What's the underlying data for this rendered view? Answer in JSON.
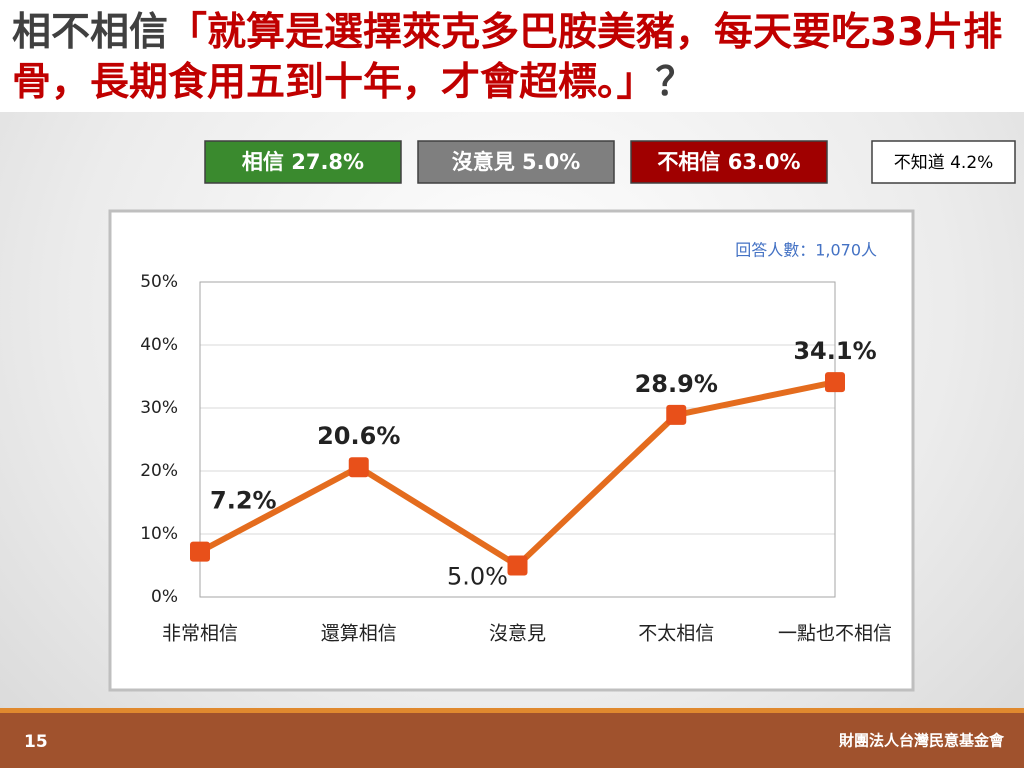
{
  "header": {
    "title": [
      "相不相信",
      "「就算是選擇萊克多巴胺美豬，每天要吃33片排骨，長期食用五到十年，才會超標。」",
      "？"
    ]
  },
  "summary": [
    "相信 27.8%",
    "沒意見 5.0%",
    "不相信 63.0%",
    "不知道 4.2%"
  ],
  "chart_data": {
    "type": "line",
    "note": "回答人數：1,070人",
    "categories": [
      "非常相信",
      "還算相信",
      "沒意見",
      "不太相信",
      "一點也不相信"
    ],
    "series": [
      {
        "color": "#e46c1e",
        "marker_color": "#e8501a",
        "values": [
          7.2,
          20.6,
          5.0,
          28.9,
          34.1
        ],
        "value_labels": [
          "7.2%",
          "20.6%",
          "5.0%",
          "28.9%",
          "34.1%"
        ]
      }
    ],
    "ylim": [
      0,
      50
    ],
    "yticks": [
      {
        "value": 0,
        "label": "0%"
      },
      {
        "value": 10,
        "label": "10%"
      },
      {
        "value": 20,
        "label": "20%"
      },
      {
        "value": 30,
        "label": "30%"
      },
      {
        "value": 40,
        "label": "40%"
      },
      {
        "value": 50,
        "label": "50%"
      }
    ],
    "grid": true
  },
  "footer": {
    "page": "15",
    "organization": "財團法人台灣民意基金會"
  }
}
